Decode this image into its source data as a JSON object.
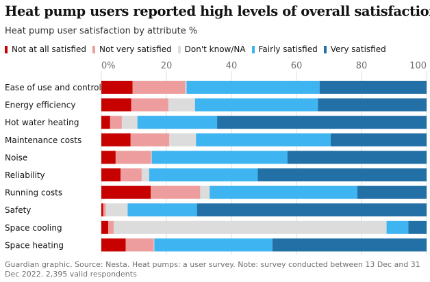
{
  "title": "Heat pump users reported high levels of overall satisfaction",
  "subtitle": "Heat pump user satisfaction by attribute %",
  "source": "Guardian graphic. Source: Nesta. Heat pumps: a user survey. Note: survey conducted between 13 Dec and 31 Dec 2022. 2,395 valid respondents",
  "chart_data": {
    "type": "bar",
    "orientation": "horizontal",
    "stacked": true,
    "xlim": [
      0,
      100
    ],
    "xticks": [
      0,
      20,
      40,
      60,
      80,
      100
    ],
    "xtick_labels": [
      "0%",
      "20",
      "40",
      "60",
      "80",
      "100"
    ],
    "grid": true,
    "legend_position": "top",
    "categories": [
      "Ease of use and control",
      "Energy efficiency",
      "Hot water heating",
      "Maintenance costs",
      "Noise",
      "Reliability",
      "Running costs",
      "Safety",
      "Space cooling",
      "Space heating"
    ],
    "series": [
      {
        "name": "Not at all satisfied",
        "color": "#c70000",
        "values": [
          9.6,
          9.2,
          2.7,
          9.0,
          4.4,
          5.9,
          15.2,
          0.6,
          2.1,
          7.5
        ]
      },
      {
        "name": "Not very satisfied",
        "color": "#ed9d9d",
        "values": [
          16.2,
          11.4,
          3.6,
          11.9,
          10.9,
          6.5,
          15.2,
          0.8,
          1.7,
          8.6
        ]
      },
      {
        "name": "Don't know/NA",
        "color": "#dcdcdc",
        "values": [
          0.4,
          8.2,
          4.8,
          8.2,
          0.2,
          2.3,
          2.9,
          6.7,
          83.9,
          0.2
        ]
      },
      {
        "name": "Fairly satisfied",
        "color": "#3eb4f0",
        "values": [
          40.9,
          37.8,
          24.5,
          41.4,
          41.7,
          33.4,
          45.4,
          21.3,
          6.7,
          36.3
        ]
      },
      {
        "name": "Very satisfied",
        "color": "#2270a6",
        "values": [
          32.9,
          33.4,
          64.4,
          29.5,
          42.8,
          51.9,
          21.3,
          70.6,
          5.6,
          47.4
        ]
      }
    ]
  }
}
